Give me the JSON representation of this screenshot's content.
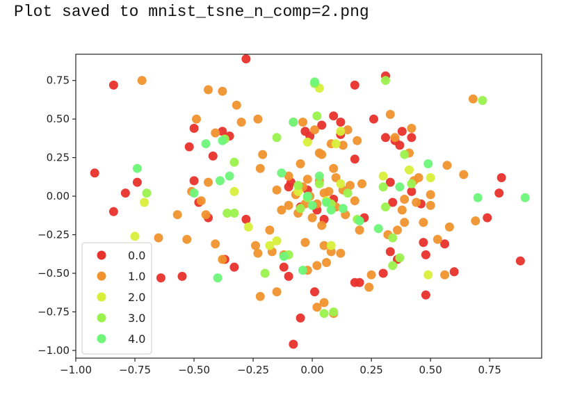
{
  "console": {
    "output_line": "Plot saved to mnist_tsne_n_comp=2.png"
  },
  "chart_data": {
    "type": "scatter",
    "title": "",
    "xlabel": "",
    "ylabel": "",
    "xlim": [
      -1.0,
      0.97
    ],
    "ylim": [
      -1.05,
      0.92
    ],
    "xticks": [
      -1.0,
      -0.75,
      -0.5,
      -0.25,
      0.0,
      0.25,
      0.5,
      0.75
    ],
    "xtick_labels": [
      "−1.00",
      "−0.75",
      "−0.50",
      "−0.25",
      "0.00",
      "0.25",
      "0.50",
      "0.75"
    ],
    "yticks": [
      -1.0,
      -0.75,
      -0.5,
      -0.25,
      0.0,
      0.25,
      0.5,
      0.75
    ],
    "ytick_labels": [
      "−1.00",
      "−0.75",
      "−0.50",
      "−0.25",
      "0.00",
      "0.25",
      "0.50",
      "0.75"
    ],
    "grid": false,
    "legend_position": "lower-left",
    "series": [
      {
        "name": "0.0",
        "color": "#e8322c",
        "points": [
          [
            -0.28,
            0.89
          ],
          [
            -0.84,
            0.72
          ],
          [
            -0.92,
            0.15
          ],
          [
            -0.79,
            0.02
          ],
          [
            -0.84,
            -0.1
          ],
          [
            -0.74,
            0.09
          ],
          [
            -0.5,
            0.44
          ],
          [
            -0.5,
            0.1
          ],
          [
            -0.52,
            0.32
          ],
          [
            -0.42,
            0.26
          ],
          [
            -0.48,
            -0.04
          ],
          [
            -0.44,
            -0.14
          ],
          [
            -0.38,
            0.42
          ],
          [
            -0.35,
            0.39
          ],
          [
            -0.28,
            -0.15
          ],
          [
            -0.33,
            -0.46
          ],
          [
            -0.37,
            -0.41
          ],
          [
            -0.64,
            -0.53
          ],
          [
            -0.55,
            -0.52
          ],
          [
            -0.12,
            -0.46
          ],
          [
            -0.1,
            -0.52
          ],
          [
            -0.05,
            -0.79
          ],
          [
            -0.08,
            -0.96
          ],
          [
            0.01,
            -0.62
          ],
          [
            0.09,
            0.52
          ],
          [
            0.12,
            0.48
          ],
          [
            0.18,
            0.72
          ],
          [
            0.18,
            0.24
          ],
          [
            0.18,
            -0.56
          ],
          [
            0.2,
            -0.56
          ],
          [
            0.22,
            -0.14
          ],
          [
            0.26,
            0.5
          ],
          [
            0.31,
            0.38
          ],
          [
            0.31,
            0.78
          ],
          [
            0.35,
            0.36
          ],
          [
            0.38,
            0.42
          ],
          [
            0.37,
            0.33
          ],
          [
            0.42,
            0.38
          ],
          [
            0.33,
            -0.36
          ],
          [
            0.3,
            -0.5
          ],
          [
            0.36,
            -0.41
          ],
          [
            0.47,
            -0.3
          ],
          [
            0.48,
            -0.38
          ],
          [
            0.48,
            -0.64
          ],
          [
            0.56,
            -0.31
          ],
          [
            0.6,
            -0.49
          ],
          [
            0.74,
            -0.14
          ],
          [
            0.8,
            0.12
          ],
          [
            0.79,
            0.02
          ],
          [
            0.88,
            -0.42
          ],
          [
            0.33,
            0.09
          ],
          [
            0.34,
            -0.04
          ],
          [
            0.42,
            0.03
          ],
          [
            0.46,
            -0.05
          ],
          [
            -0.03,
            0.42
          ],
          [
            0.04,
            0.46
          ],
          [
            -0.01,
            0.39
          ],
          [
            -0.09,
            0.09
          ],
          [
            -0.1,
            0.06
          ],
          [
            0.02,
            -0.09
          ],
          [
            0.05,
            -0.15
          ],
          [
            0.09,
            -0.02
          ],
          [
            -0.02,
            0.04
          ],
          [
            -0.05,
            -0.07
          ],
          [
            0.12,
            0.4
          ]
        ]
      },
      {
        "name": "1.0",
        "color": "#f0922e",
        "points": [
          [
            -0.72,
            0.75
          ],
          [
            -0.44,
            0.69
          ],
          [
            -0.38,
            0.68
          ],
          [
            -0.32,
            0.59
          ],
          [
            -0.49,
            0.5
          ],
          [
            -0.3,
            0.48
          ],
          [
            -0.41,
            0.41
          ],
          [
            -0.23,
            0.5
          ],
          [
            -0.21,
            0.27
          ],
          [
            -0.22,
            0.18
          ],
          [
            -0.44,
            0.09
          ],
          [
            -0.51,
            0.03
          ],
          [
            -0.47,
            -0.03
          ],
          [
            -0.57,
            -0.12
          ],
          [
            -0.45,
            -0.12
          ],
          [
            -0.65,
            -0.27
          ],
          [
            -0.53,
            -0.28
          ],
          [
            -0.41,
            -0.31
          ],
          [
            -0.38,
            -0.41
          ],
          [
            -0.24,
            -0.32
          ],
          [
            -0.23,
            -0.37
          ],
          [
            -0.18,
            -0.22
          ],
          [
            -0.17,
            -0.36
          ],
          [
            -0.12,
            -0.38
          ],
          [
            -0.22,
            -0.65
          ],
          [
            -0.15,
            -0.62
          ],
          [
            -0.1,
            -0.06
          ],
          [
            -0.13,
            -0.09
          ],
          [
            -0.07,
            0.01
          ],
          [
            -0.04,
            0.06
          ],
          [
            -0.01,
            0.0
          ],
          [
            0.02,
            -0.05
          ],
          [
            0.05,
            0.02
          ],
          [
            0.07,
            0.03
          ],
          [
            0.1,
            -0.07
          ],
          [
            0.13,
            0.04
          ],
          [
            0.16,
            0.07
          ],
          [
            0.18,
            -0.03
          ],
          [
            0.21,
            0.08
          ],
          [
            0.19,
            0.36
          ],
          [
            0.15,
            0.43
          ],
          [
            0.13,
            0.33
          ],
          [
            0.08,
            0.34
          ],
          [
            0.03,
            0.28
          ],
          [
            -0.05,
            0.21
          ],
          [
            -0.1,
            0.13
          ],
          [
            -0.08,
            0.48
          ],
          [
            -0.04,
            0.48
          ],
          [
            0.01,
            0.43
          ],
          [
            0.04,
            0.27
          ],
          [
            0.05,
            -0.32
          ],
          [
            0.08,
            -0.36
          ],
          [
            0.12,
            -0.37
          ],
          [
            0.02,
            -0.45
          ],
          [
            0.06,
            -0.43
          ],
          [
            0.02,
            -0.72
          ],
          [
            0.09,
            -0.76
          ],
          [
            0.05,
            -0.69
          ],
          [
            0.2,
            -0.22
          ],
          [
            0.24,
            -0.59
          ],
          [
            0.25,
            -0.51
          ],
          [
            0.32,
            -0.25
          ],
          [
            0.36,
            -0.22
          ],
          [
            0.39,
            -0.17
          ],
          [
            0.43,
            0.1
          ],
          [
            0.45,
            0.12
          ],
          [
            0.41,
            0.28
          ],
          [
            0.42,
            0.44
          ],
          [
            0.35,
            0.38
          ],
          [
            0.33,
            0.53
          ],
          [
            0.47,
            -0.17
          ],
          [
            0.5,
            -0.06
          ],
          [
            0.53,
            -0.28
          ],
          [
            0.5,
            0.01
          ],
          [
            0.57,
            0.2
          ],
          [
            0.58,
            -0.2
          ],
          [
            0.64,
            0.14
          ],
          [
            0.69,
            -0.16
          ],
          [
            0.68,
            0.63
          ],
          [
            0.56,
            -0.51
          ],
          [
            0.39,
            -0.02
          ],
          [
            0.44,
            -0.04
          ],
          [
            0.38,
            -0.09
          ],
          [
            -0.15,
            0.04
          ],
          [
            -0.02,
            0.11
          ],
          [
            0.0,
            -0.14
          ],
          [
            -0.06,
            -0.11
          ],
          [
            0.1,
            0.12
          ],
          [
            -0.03,
            -0.05
          ],
          [
            0.14,
            -0.12
          ],
          [
            0.03,
            0.1
          ],
          [
            -0.02,
            -0.48
          ],
          [
            -0.03,
            -0.3
          ],
          [
            0.04,
            -0.19
          ],
          [
            0.09,
            0.18
          ]
        ]
      },
      {
        "name": "2.0",
        "color": "#d8ef3a",
        "points": [
          [
            -0.71,
            -0.04
          ],
          [
            -0.75,
            -0.26
          ],
          [
            -0.33,
            0.03
          ],
          [
            -0.27,
            -0.2
          ],
          [
            -0.15,
            -0.29
          ],
          [
            -0.02,
            0.35
          ],
          [
            0.03,
            0.7
          ],
          [
            0.12,
            0.42
          ],
          [
            0.1,
            0.34
          ],
          [
            0.08,
            -0.32
          ],
          [
            0.41,
            0.17
          ],
          [
            0.5,
            0.12
          ],
          [
            0.49,
            -0.51
          ],
          [
            0.06,
            -0.03
          ],
          [
            -0.06,
            0.03
          ],
          [
            0.3,
            0.13
          ],
          [
            -0.18,
            -0.32
          ],
          [
            0.12,
            0.08
          ]
        ]
      },
      {
        "name": "3.0",
        "color": "#9bf24e",
        "points": [
          [
            -0.7,
            0.02
          ],
          [
            -0.37,
            0.37
          ],
          [
            -0.33,
            0.22
          ],
          [
            -0.36,
            -0.11
          ],
          [
            -0.33,
            -0.11
          ],
          [
            -0.2,
            -0.5
          ],
          [
            -0.15,
            0.38
          ],
          [
            -0.1,
            -0.38
          ],
          [
            0.02,
            0.52
          ],
          [
            0.01,
            0.73
          ],
          [
            0.31,
            0.75
          ],
          [
            0.3,
            0.06
          ],
          [
            0.31,
            -0.07
          ],
          [
            0.34,
            -0.27
          ],
          [
            0.37,
            -0.4
          ],
          [
            0.39,
            0.27
          ],
          [
            0.42,
            0.08
          ],
          [
            0.19,
            -0.15
          ],
          [
            0.05,
            -0.76
          ],
          [
            0.09,
            -0.75
          ],
          [
            -0.02,
            -0.01
          ],
          [
            0.08,
            -0.05
          ],
          [
            -0.05,
            -0.08
          ],
          [
            0.15,
            0.02
          ],
          [
            0.03,
            0.08
          ],
          [
            0.34,
            -0.45
          ],
          [
            0.72,
            0.62
          ],
          [
            -0.06,
            0.07
          ]
        ]
      },
      {
        "name": "4.0",
        "color": "#6ef57a",
        "points": [
          [
            -0.74,
            0.18
          ],
          [
            -0.5,
            0.02
          ],
          [
            -0.45,
            0.34
          ],
          [
            -0.39,
            0.1
          ],
          [
            -0.38,
            0.36
          ],
          [
            -0.4,
            -0.53
          ],
          [
            -0.13,
            0.15
          ],
          [
            -0.12,
            -0.39
          ],
          [
            -0.08,
            0.48
          ],
          [
            -0.04,
            -0.48
          ],
          [
            0.01,
            0.74
          ],
          [
            0.03,
            0.13
          ],
          [
            0.06,
            -0.04
          ],
          [
            0.13,
            -0.08
          ],
          [
            0.2,
            -0.16
          ],
          [
            0.28,
            -0.21
          ],
          [
            0.49,
            0.21
          ],
          [
            0.37,
            0.06
          ],
          [
            0.7,
            -0.01
          ],
          [
            0.9,
            -0.01
          ],
          [
            -0.35,
            0.13
          ],
          [
            0.0,
            -0.06
          ],
          [
            0.08,
            -0.09
          ],
          [
            -0.02,
            0.0
          ]
        ]
      }
    ]
  }
}
